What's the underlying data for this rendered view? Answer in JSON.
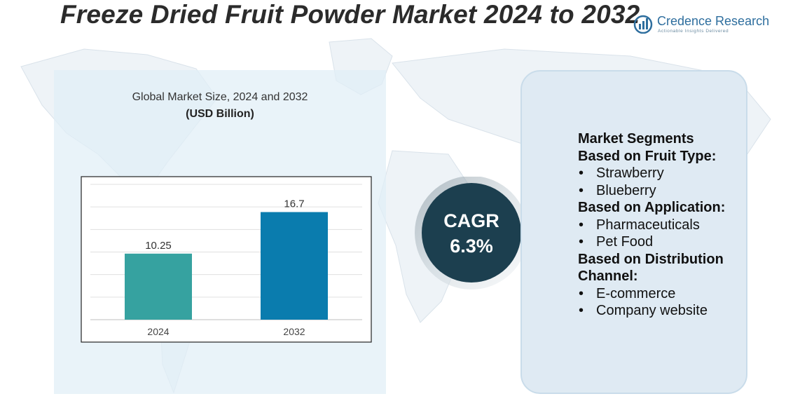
{
  "header": {
    "title": "Freeze Dried Fruit Powder Market 2024 to 2032"
  },
  "logo": {
    "name": "Credence Research",
    "tagline": "Actionable Insights Delivered",
    "icon": "bar-chart-logo-icon"
  },
  "colors": {
    "bar_2024": "#36a2a0",
    "bar_2032": "#0a7cae",
    "cagr_circle": "#1c3f4f",
    "panel": "#dfeaf3"
  },
  "chart_data": {
    "type": "bar",
    "title": "Global Market Size, 2024 and 2032",
    "unit": "(USD Billion)",
    "categories": [
      "2024",
      "2032"
    ],
    "values": [
      10.25,
      16.7
    ],
    "value_labels": [
      "10.25",
      "16.7"
    ],
    "ylim": [
      0,
      21
    ],
    "grid": true
  },
  "cagr": {
    "label": "CAGR",
    "value": "6.3%"
  },
  "segments": {
    "heading_1": "Market Segments",
    "heading_2": "Based on Fruit Type:",
    "fruit_types": [
      "Strawberry",
      "Blueberry"
    ],
    "heading_3": "Based on Application:",
    "applications": [
      "Pharmaceuticals",
      "Pet Food"
    ],
    "heading_4a": "Based on Distribution",
    "heading_4b": "Channel:",
    "channels": [
      "E-commerce",
      "Company website"
    ]
  }
}
